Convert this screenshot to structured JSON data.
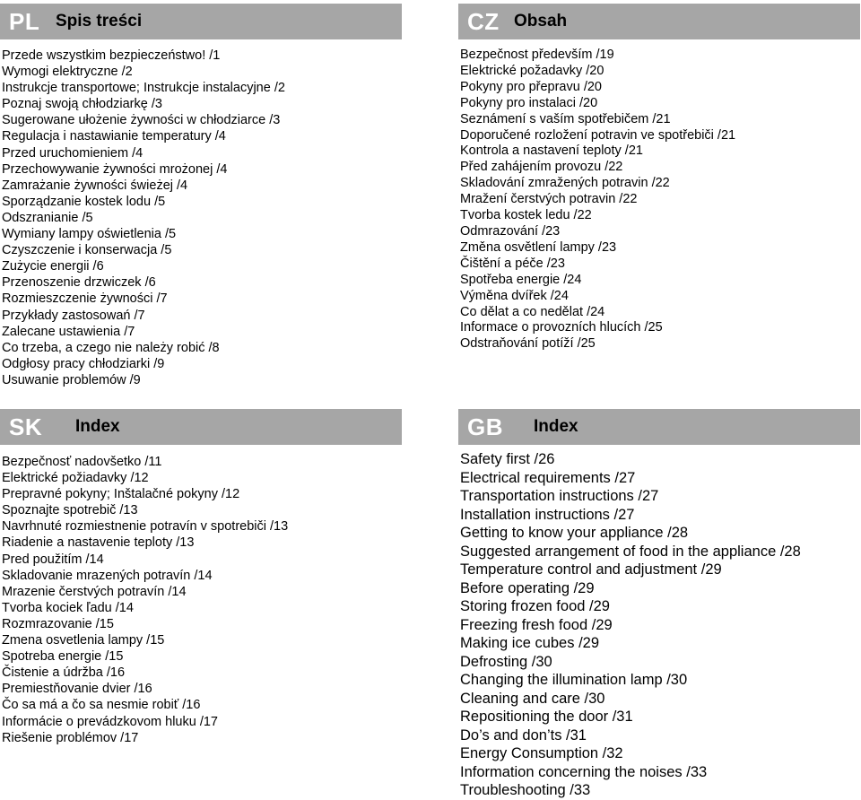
{
  "sections": {
    "pl": {
      "code": "PL",
      "title": "Spis treści",
      "items": [
        "Przede wszystkim bezpieczeństwo! /1",
        "Wymogi elektryczne /2",
        "Instrukcje transportowe; Instrukcje instalacyjne /2",
        "Poznaj swoją chłodziarkę /3",
        "Sugerowane ułożenie żywności w chłodziarce /3",
        "Regulacja i nastawianie temperatury /4",
        "Przed uruchomieniem /4",
        "Przechowywanie żywności mrożonej /4",
        "Zamrażanie żywności świeżej /4",
        "Sporządzanie kostek lodu /5",
        "Odszranianie /5",
        "Wymiany lampy oświetlenia /5",
        "Czyszczenie i konserwacja /5",
        "Zużycie energii /6",
        "Przenoszenie drzwiczek /6",
        "Rozmieszczenie żywności /7",
        "Przykłady zastosowań /7",
        "Zalecane ustawienia /7",
        "Co trzeba, a czego nie należy robić /8",
        "Odgłosy pracy chłodziarki /9",
        "Usuwanie problemów /9"
      ]
    },
    "cz": {
      "code": "CZ",
      "title": "Obsah",
      "items": [
        "Bezpečnost především /19",
        "Elektrické požadavky /20",
        "Pokyny pro přepravu /20",
        "Pokyny pro instalaci /20",
        "Seznámení s vaším spotřebičem /21",
        "Doporučené rozložení potravin ve spotřebiči /21",
        "Kontrola a nastavení teploty /21",
        "Před zahájením provozu /22",
        "Skladování zmražených potravin /22",
        "Mražení čerstvých potravin /22",
        "Tvorba kostek ledu /22",
        "Odmrazování /23",
        "Změna osvětlení lampy /23",
        "Čištění a péče /23",
        "Spotřeba energie /24",
        "Výměna dvířek /24",
        "Co dělat a co nedělat /24",
        "Informace o provozních hlucích /25",
        "Odstraňování potíží /25"
      ]
    },
    "sk": {
      "code": "SK",
      "title": "Index",
      "items": [
        "Bezpečnosť nadovšetko /11",
        "Elektrické požiadavky /12",
        "Prepravné pokyny; Inštalačné pokyny /12",
        "Spoznajte spotrebič /13",
        "Navrhnuté rozmiestnenie potravín v spotrebiči /13",
        "Riadenie a nastavenie teploty /13",
        "Pred použitím /14",
        "Skladovanie mrazených potravín /14",
        "Mrazenie čerstvých potravín /14",
        "Tvorba kociek ľadu /14",
        "Rozmrazovanie /15",
        "Zmena osvetlenia lampy /15",
        "Spotreba energie /15",
        "Čistenie a údržba /16",
        "Premiestňovanie dvier /16",
        "Čo sa má a čo sa nesmie robiť /16",
        "Informácie o prevádzkovom hluku /17",
        "Riešenie problémov /17"
      ]
    },
    "gb": {
      "code": "GB",
      "title": "Index",
      "items": [
        "Safety first /26",
        "Electrical requirements /27",
        "Transportation instructions /27",
        "Installation instructions /27",
        "Getting to know your appliance /28",
        "Suggested arrangement of food in the appliance /28",
        "Temperature control and adjustment /29",
        "Before operating /29",
        "Storing frozen food /29",
        "Freezing fresh food /29",
        "Making ice cubes /29",
        "Defrosting /30",
        "Changing the illumination lamp /30",
        "Cleaning and care /30",
        "Repositioning the door /31",
        "Do’s and don’ts /31",
        "Energy Consumption /32",
        "Information concerning the noises /33",
        "Troubleshooting /33"
      ]
    }
  },
  "colors": {
    "header_bg": "#a6a6a6",
    "code_text": "#ffffff",
    "body_text": "#000000"
  }
}
